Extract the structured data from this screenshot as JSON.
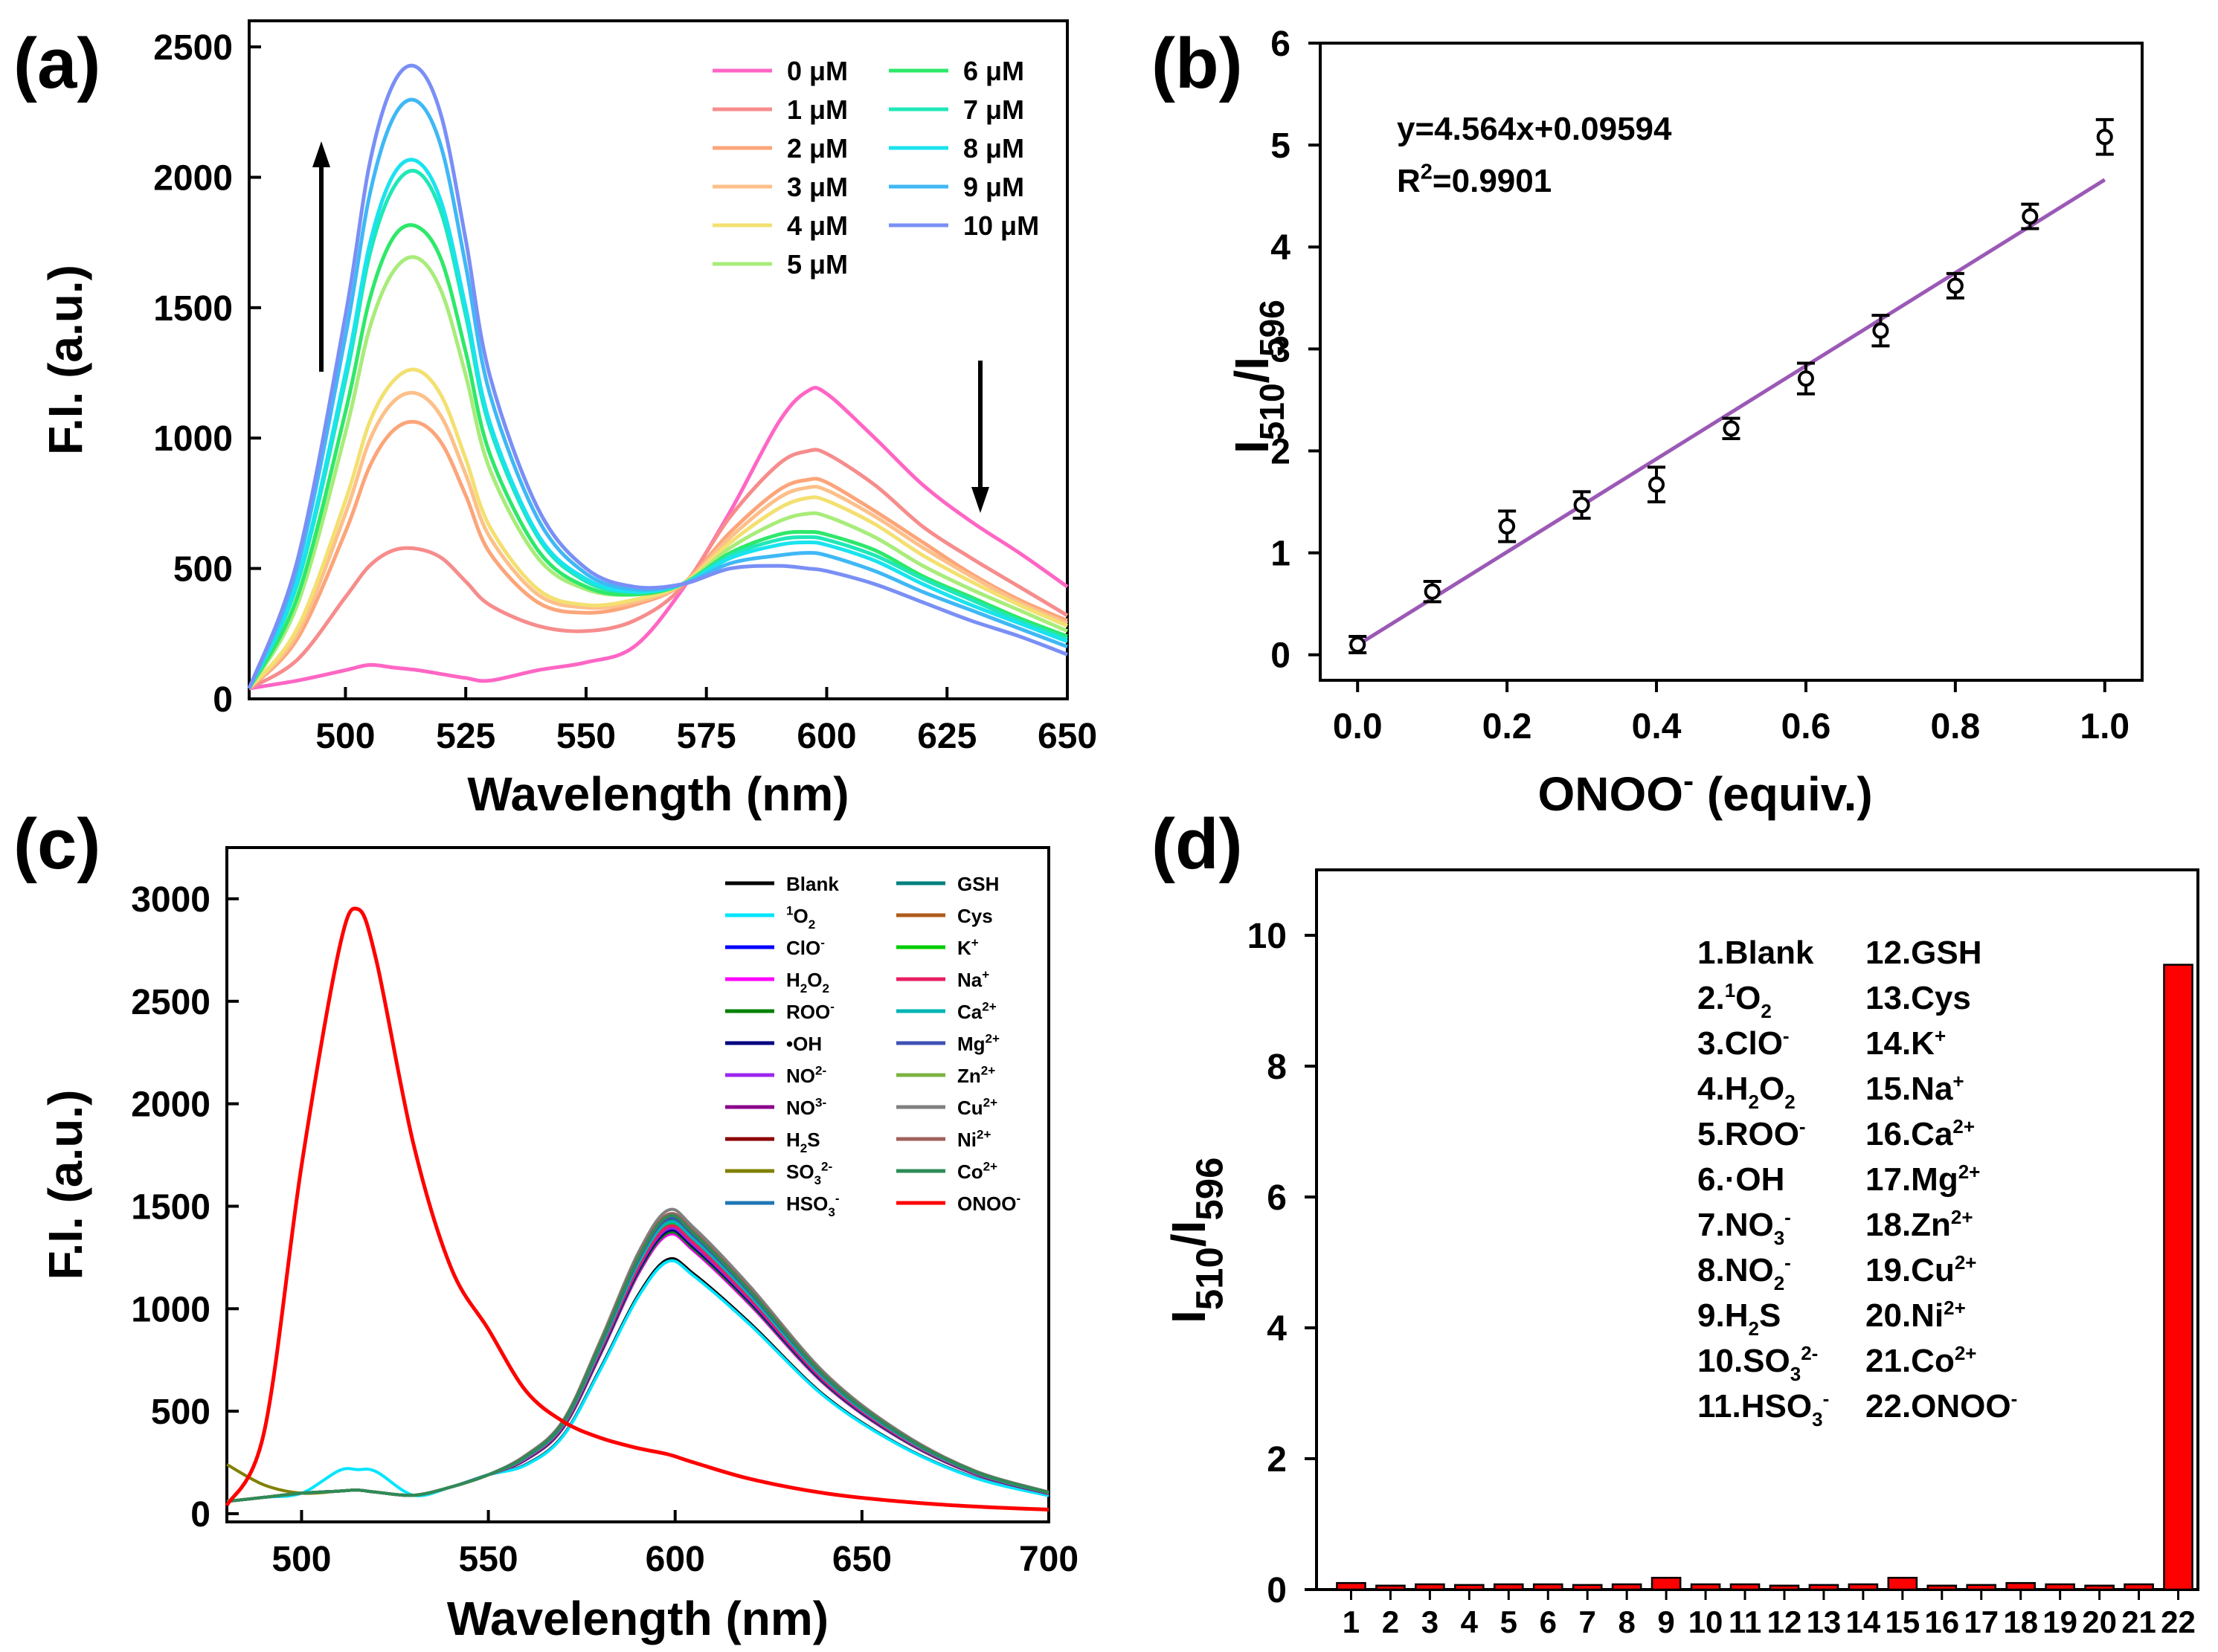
{
  "panels": {
    "a": {
      "label": "(a)",
      "arrows": [
        "up",
        "down"
      ]
    },
    "b": {
      "label": "(b)",
      "equation": "y=4.564x+0.09594",
      "r2_prefix": "R",
      "r2_sup": "2",
      "r2_suffix": "=0.9901"
    },
    "c": {
      "label": "(c)"
    },
    "d": {
      "label": "(d)"
    }
  },
  "chart_data": [
    {
      "id": "a",
      "type": "line",
      "xlabel": "Wavelength (nm)",
      "ylabel": "F.I. (a.u.)",
      "xlim": [
        480,
        650
      ],
      "ylim": [
        0,
        2600
      ],
      "xticks": [
        500,
        525,
        550,
        575,
        600,
        625,
        650
      ],
      "yticks": [
        0,
        500,
        1000,
        1500,
        2000,
        2500
      ],
      "legend": "top-right",
      "x": [
        480,
        490,
        500,
        505,
        510,
        515,
        520,
        525,
        530,
        540,
        550,
        560,
        570,
        580,
        590,
        596,
        600,
        610,
        620,
        630,
        640,
        650
      ],
      "series": [
        {
          "name": "0 μM",
          "color": "#ff66c4",
          "values": [
            40,
            70,
            110,
            130,
            120,
            110,
            95,
            80,
            70,
            110,
            140,
            200,
            420,
            720,
            1060,
            1180,
            1170,
            1000,
            820,
            680,
            560,
            430
          ]
        },
        {
          "name": "1 μM",
          "color": "#f78c8c",
          "values": [
            40,
            150,
            390,
            510,
            570,
            575,
            540,
            450,
            360,
            280,
            260,
            300,
            430,
            700,
            900,
            950,
            940,
            820,
            660,
            540,
            430,
            320
          ]
        },
        {
          "name": "2 μM",
          "color": "#fca57a",
          "values": [
            40,
            230,
            640,
            890,
            1030,
            1060,
            980,
            780,
            560,
            370,
            330,
            360,
            440,
            640,
            800,
            840,
            830,
            720,
            600,
            480,
            380,
            300
          ]
        },
        {
          "name": "3 μM",
          "color": "#fdc08a",
          "values": [
            40,
            250,
            710,
            990,
            1140,
            1170,
            1080,
            860,
            620,
            400,
            350,
            370,
            440,
            620,
            770,
            810,
            800,
            700,
            580,
            470,
            370,
            290
          ]
        },
        {
          "name": "4 μM",
          "color": "#f3e070",
          "values": [
            40,
            270,
            760,
            1060,
            1220,
            1260,
            1160,
            920,
            660,
            420,
            360,
            380,
            440,
            600,
            730,
            770,
            760,
            670,
            550,
            450,
            360,
            280
          ]
        },
        {
          "name": "5 μM",
          "color": "#a8ec7a",
          "values": [
            40,
            360,
            1020,
            1420,
            1640,
            1690,
            1560,
            1240,
            880,
            540,
            420,
            400,
            440,
            580,
            680,
            710,
            700,
            620,
            510,
            420,
            340,
            260
          ]
        },
        {
          "name": "6 μM",
          "color": "#2ee86a",
          "values": [
            40,
            390,
            1100,
            1530,
            1770,
            1810,
            1680,
            1330,
            940,
            570,
            430,
            400,
            440,
            560,
            630,
            640,
            630,
            570,
            470,
            390,
            310,
            240
          ]
        },
        {
          "name": "7 μM",
          "color": "#1fe8b8",
          "values": [
            40,
            440,
            1220,
            1700,
            1960,
            2020,
            1860,
            1470,
            1040,
            620,
            450,
            410,
            440,
            550,
            610,
            620,
            610,
            550,
            460,
            380,
            300,
            230
          ]
        },
        {
          "name": "8 μM",
          "color": "#1ae3ee",
          "values": [
            40,
            450,
            1250,
            1740,
            2010,
            2060,
            1900,
            1500,
            1060,
            630,
            460,
            410,
            440,
            540,
            590,
            600,
            590,
            530,
            440,
            360,
            290,
            220
          ]
        },
        {
          "name": "9 μM",
          "color": "#3fb8f5",
          "values": [
            40,
            500,
            1390,
            1930,
            2230,
            2290,
            2110,
            1660,
            1170,
            690,
            480,
            420,
            440,
            520,
            550,
            560,
            550,
            490,
            410,
            340,
            270,
            200
          ]
        },
        {
          "name": "10 μM",
          "color": "#7a8ff5",
          "values": [
            40,
            530,
            1470,
            2050,
            2360,
            2420,
            2230,
            1760,
            1240,
            730,
            500,
            430,
            440,
            500,
            510,
            500,
            490,
            440,
            370,
            300,
            240,
            170
          ]
        }
      ]
    },
    {
      "id": "b",
      "type": "scatter",
      "xlabel_main": "ONOO",
      "xlabel_sup": "-",
      "xlabel_rest": " (equiv.)",
      "ylabel_main": "I",
      "ylabel_sub1": "510",
      "ylabel_mid": "/I",
      "ylabel_sub2": "596",
      "xlim": [
        -0.05,
        1.05
      ],
      "ylim": [
        -0.25,
        6
      ],
      "xticks": [
        "0.0",
        "0.2",
        "0.4",
        "0.6",
        "0.8",
        "1.0"
      ],
      "yticks": [
        "0",
        "1",
        "2",
        "3",
        "4",
        "5",
        "6"
      ],
      "x": [
        0.0,
        0.1,
        0.2,
        0.3,
        0.4,
        0.5,
        0.6,
        0.7,
        0.8,
        0.9,
        1.0
      ],
      "y": [
        0.1,
        0.62,
        1.26,
        1.47,
        1.67,
        2.22,
        2.71,
        3.18,
        3.62,
        4.3,
        5.08
      ],
      "error": [
        0.08,
        0.1,
        0.15,
        0.13,
        0.17,
        0.1,
        0.15,
        0.15,
        0.12,
        0.12,
        0.17
      ],
      "fit": {
        "slope": 4.564,
        "intercept": 0.09594,
        "color": "#9b59b6"
      }
    },
    {
      "id": "c",
      "type": "line",
      "xlabel": "Wavelength (nm)",
      "ylabel": "F.I. (a.u.)",
      "xlim": [
        480,
        700
      ],
      "ylim": [
        -40,
        3250
      ],
      "xticks": [
        500,
        550,
        600,
        650,
        700
      ],
      "yticks": [
        0,
        500,
        1000,
        1500,
        2000,
        2500,
        3000
      ],
      "legend": "top-right",
      "x": [
        480,
        490,
        500,
        510,
        515,
        520,
        530,
        540,
        550,
        560,
        570,
        580,
        590,
        598,
        605,
        620,
        640,
        660,
        680,
        700
      ],
      "base_values": [
        60,
        80,
        100,
        110,
        115,
        105,
        90,
        130,
        190,
        270,
        430,
        800,
        1200,
        1400,
        1320,
        1050,
        650,
        380,
        200,
        100
      ],
      "series": [
        {
          "name": "Blank",
          "sup": "",
          "sub": "",
          "color": "#000000",
          "peak": 1240
        },
        {
          "name": "O",
          "sup": "1",
          "sub": "2",
          "color": "#00e5ff",
          "peak": 1230
        },
        {
          "name": "ClO",
          "sup": "-",
          "sub": "",
          "color": "#0000ff",
          "peak": 1380
        },
        {
          "name": "H",
          "sup": "",
          "sub": "2",
          "rest": "O",
          "sub2": "2",
          "color": "#ff00ff",
          "peak": 1360
        },
        {
          "name": "ROO",
          "sup": "-",
          "sub": "",
          "color": "#008000",
          "peak": 1370
        },
        {
          "name": "•OH",
          "sup": "",
          "sub": "",
          "color": "#000080",
          "peak": 1380
        },
        {
          "name": "NO",
          "sup": "2-",
          "sub": "",
          "color": "#9c27f0",
          "peak": 1390
        },
        {
          "name": "NO",
          "sup": "3-",
          "sub": "",
          "color": "#8b008b",
          "peak": 1400
        },
        {
          "name": "H",
          "sup": "",
          "sub": "2",
          "rest": "S",
          "color": "#8b0000",
          "peak": 1400
        },
        {
          "name": "SO",
          "sup": "2-",
          "sub": "3",
          "color": "#808000",
          "peak": 1410
        },
        {
          "name": "HSO",
          "sup": "-",
          "sub": "3",
          "color": "#1f77b4",
          "peak": 1420
        },
        {
          "name": "GSH",
          "sup": "",
          "sub": "",
          "color": "#008080",
          "peak": 1430
        },
        {
          "name": "Cys",
          "sup": "",
          "sub": "",
          "color": "#b05a1a",
          "peak": 1420
        },
        {
          "name": "K",
          "sup": "+",
          "sub": "",
          "color": "#00cc00",
          "peak": 1410
        },
        {
          "name": "Na",
          "sup": "+",
          "sub": "",
          "color": "#e91e63",
          "peak": 1400
        },
        {
          "name": "Ca",
          "sup": "2+",
          "sub": "",
          "color": "#00b5b5",
          "peak": 1420
        },
        {
          "name": "Mg",
          "sup": "2+",
          "sub": "",
          "color": "#3f51b5",
          "peak": 1440
        },
        {
          "name": "Zn",
          "sup": "2+",
          "sub": "",
          "color": "#7cb342",
          "peak": 1450
        },
        {
          "name": "Cu",
          "sup": "2+",
          "sub": "",
          "color": "#808080",
          "peak": 1480
        },
        {
          "name": "Ni",
          "sup": "2+",
          "sub": "",
          "color": "#a0605a",
          "peak": 1460
        },
        {
          "name": "Co",
          "sup": "2+",
          "sub": "",
          "color": "#2e8b57",
          "peak": 1450
        }
      ],
      "onoo": {
        "name": "ONOO",
        "sup": "-",
        "color": "#ff0000",
        "values": [
          40,
          400,
          1700,
          2750,
          2950,
          2700,
          1800,
          1200,
          900,
          600,
          450,
          370,
          320,
          290,
          250,
          170,
          100,
          60,
          35,
          20
        ]
      }
    },
    {
      "id": "d",
      "type": "bar",
      "ylabel_main": "I",
      "ylabel_sub1": "510",
      "ylabel_mid": "/I",
      "ylabel_sub2": "596",
      "ylim": [
        0,
        11
      ],
      "yticks": [
        "0",
        "2",
        "4",
        "6",
        "8",
        "10"
      ],
      "bar_color": "#ff0000",
      "categories": [
        "1",
        "2",
        "3",
        "4",
        "5",
        "6",
        "7",
        "8",
        "9",
        "10",
        "11",
        "12",
        "13",
        "14",
        "15",
        "16",
        "17",
        "18",
        "19",
        "20",
        "21",
        "22"
      ],
      "values": [
        0.1,
        0.06,
        0.08,
        0.07,
        0.08,
        0.08,
        0.07,
        0.08,
        0.18,
        0.08,
        0.08,
        0.06,
        0.07,
        0.08,
        0.18,
        0.06,
        0.07,
        0.1,
        0.08,
        0.06,
        0.08,
        9.55
      ],
      "annotation_left": [
        {
          "main": "1.Blank"
        },
        {
          "main": "2.",
          "sup": "1",
          "rest": "O",
          "sub": "2"
        },
        {
          "main": "3.ClO",
          "sup": "-"
        },
        {
          "main": "4.H",
          "sub": "2",
          "rest": "O",
          "sub2": "2"
        },
        {
          "main": "5.ROO",
          "sup": "-"
        },
        {
          "main": "6.·OH"
        },
        {
          "main": "7.NO",
          "sub": "3",
          "sup": "-"
        },
        {
          "main": "8.NO",
          "sub": "2",
          "sup": "-"
        },
        {
          "main": "9.H",
          "sub": "2",
          "rest": "S"
        },
        {
          "main": "10.SO",
          "sub": "3",
          "sup": "2-"
        },
        {
          "main": "11.HSO",
          "sub": "3",
          "sup": "-"
        }
      ],
      "annotation_right": [
        {
          "main": "12.GSH"
        },
        {
          "main": "13.Cys"
        },
        {
          "main": "14.K",
          "sup": "+"
        },
        {
          "main": "15.Na",
          "sup": "+"
        },
        {
          "main": "16.Ca",
          "sup": "2+"
        },
        {
          "main": "17.Mg",
          "sup": "2+"
        },
        {
          "main": "18.Zn",
          "sup": "2+"
        },
        {
          "main": "19.Cu",
          "sup": "2+"
        },
        {
          "main": "20.Ni",
          "sup": "2+"
        },
        {
          "main": "21.Co",
          "sup": "2+"
        },
        {
          "main": "22.ONOO",
          "sup": "-"
        }
      ]
    }
  ]
}
